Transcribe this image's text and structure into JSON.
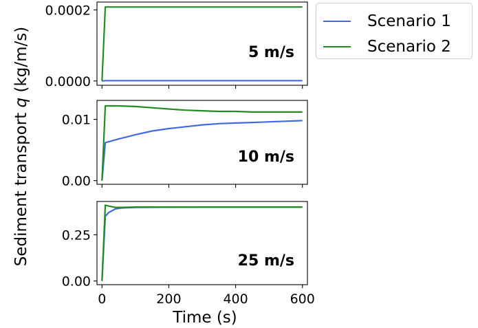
{
  "colors": {
    "scenario_1": "#4169e1",
    "scenario_2": "#228b22"
  },
  "legend": {
    "placement": "outside-top-right",
    "items": [
      {
        "label": "Scenario 1",
        "color": "#4169e1"
      },
      {
        "label": "Scenario 2",
        "color": "#228b22"
      }
    ]
  },
  "chart_data": {
    "type": "line",
    "shared_x": true,
    "xlabel": "Time (s)",
    "ylabel_prefix": "Sediment transport ",
    "ylabel_var": "q",
    "ylabel_suffix": " (kg/m/s)",
    "xlim": [
      -15,
      615
    ],
    "xticks": [
      0,
      200,
      400,
      600
    ],
    "xtick_labels": [
      "0",
      "200",
      "400",
      "600"
    ],
    "grid": false,
    "subplots": [
      {
        "annotation": "5 m/s",
        "ylim": [
          -1.2e-05,
          0.000222
        ],
        "yticks": [
          0.0,
          0.0002
        ],
        "ytick_labels": [
          "0.0000",
          "0.0002"
        ],
        "series": [
          {
            "name": "Scenario 1",
            "x": [
              0,
              10,
              600
            ],
            "y": [
              0.0,
              1e-06,
              1e-06
            ]
          },
          {
            "name": "Scenario 2",
            "x": [
              0,
              10,
              600
            ],
            "y": [
              0.0,
              0.000208,
              0.000208
            ]
          }
        ]
      },
      {
        "annotation": "10 m/s",
        "ylim": [
          -0.0006,
          0.0131
        ],
        "yticks": [
          0.0,
          0.01
        ],
        "ytick_labels": [
          "0.00",
          "0.01"
        ],
        "series": [
          {
            "name": "Scenario 1",
            "x": [
              0,
              10,
              50,
              100,
              150,
              200,
              250,
              300,
              350,
              400,
              450,
              500,
              550,
              600
            ],
            "y": [
              0.0,
              0.0062,
              0.0068,
              0.0075,
              0.0081,
              0.0085,
              0.0088,
              0.0091,
              0.0093,
              0.0094,
              0.0095,
              0.0096,
              0.0097,
              0.0098
            ]
          },
          {
            "name": "Scenario 2",
            "x": [
              0,
              10,
              50,
              100,
              150,
              200,
              250,
              300,
              350,
              400,
              450,
              500,
              550,
              600
            ],
            "y": [
              0.0,
              0.0122,
              0.0122,
              0.0121,
              0.0119,
              0.0117,
              0.0115,
              0.0114,
              0.0113,
              0.0113,
              0.0112,
              0.0112,
              0.0112,
              0.0112
            ]
          }
        ]
      },
      {
        "annotation": "25 m/s",
        "ylim": [
          -0.02,
          0.43
        ],
        "yticks": [
          0.0,
          0.25
        ],
        "ytick_labels": [
          "0.00",
          "0.25"
        ],
        "series": [
          {
            "name": "Scenario 1",
            "x": [
              0,
              10,
              20,
              40,
              60,
              100,
              200,
              300,
              400,
              500,
              600
            ],
            "y": [
              0.0,
              0.35,
              0.37,
              0.39,
              0.395,
              0.398,
              0.399,
              0.4,
              0.4,
              0.4,
              0.4
            ]
          },
          {
            "name": "Scenario 2",
            "x": [
              0,
              10,
              20,
              40,
              60,
              100,
              200,
              300,
              400,
              500,
              600
            ],
            "y": [
              0.0,
              0.41,
              0.405,
              0.398,
              0.398,
              0.4,
              0.4,
              0.4,
              0.4,
              0.4,
              0.4
            ]
          }
        ]
      }
    ]
  }
}
